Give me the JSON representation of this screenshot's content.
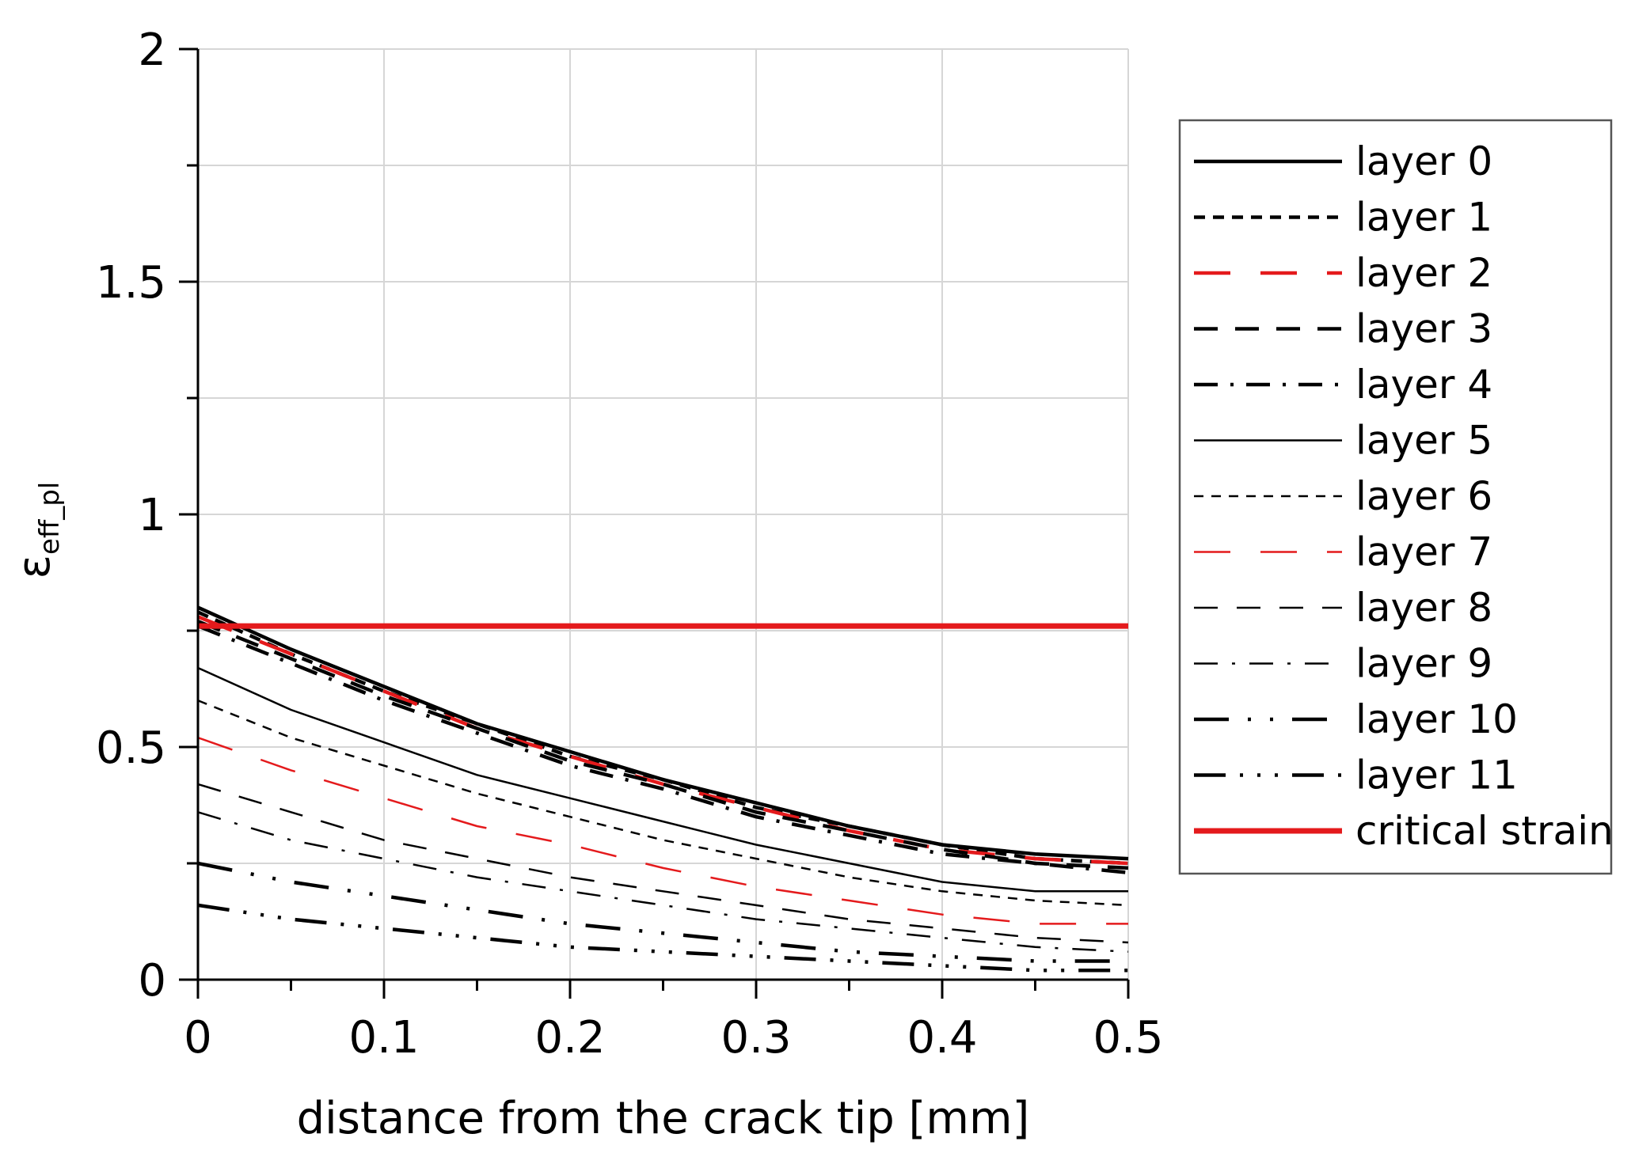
{
  "chart_data": {
    "type": "line",
    "xlabel": "distance from the crack tip [mm]",
    "ylabel_base": "ε",
    "ylabel_sub": "eff_pl",
    "xlim": [
      0,
      0.5
    ],
    "ylim": [
      0,
      2
    ],
    "x_ticks": [
      "0",
      "0.1",
      "0.2",
      "0.3",
      "0.4",
      "0.5"
    ],
    "y_ticks": [
      "0",
      "0.5",
      "1",
      "1.5",
      "2"
    ],
    "grid": true,
    "legend_position": "right",
    "x": [
      0,
      0.05,
      0.1,
      0.15,
      0.2,
      0.25,
      0.3,
      0.35,
      0.4,
      0.45,
      0.5
    ],
    "series": [
      {
        "name": "layer 0",
        "color": "#000000",
        "style": "solid",
        "values": [
          0.8,
          0.71,
          0.63,
          0.55,
          0.49,
          0.43,
          0.38,
          0.33,
          0.29,
          0.27,
          0.26
        ]
      },
      {
        "name": "layer 1",
        "color": "#000000",
        "style": "short-dash",
        "values": [
          0.79,
          0.7,
          0.62,
          0.55,
          0.48,
          0.43,
          0.37,
          0.33,
          0.29,
          0.26,
          0.25
        ]
      },
      {
        "name": "layer 2",
        "color": "#e41a1c",
        "style": "long-dash",
        "values": [
          0.78,
          0.7,
          0.62,
          0.54,
          0.48,
          0.42,
          0.37,
          0.32,
          0.28,
          0.26,
          0.25
        ]
      },
      {
        "name": "layer 3",
        "color": "#000000",
        "style": "dash",
        "values": [
          0.77,
          0.69,
          0.61,
          0.54,
          0.47,
          0.42,
          0.36,
          0.32,
          0.28,
          0.25,
          0.24
        ]
      },
      {
        "name": "layer 4",
        "color": "#000000",
        "style": "dash-dot",
        "values": [
          0.76,
          0.68,
          0.6,
          0.53,
          0.46,
          0.41,
          0.35,
          0.31,
          0.27,
          0.25,
          0.23
        ]
      },
      {
        "name": "layer 5",
        "color": "#000000",
        "style": "solid-thin",
        "values": [
          0.67,
          0.58,
          0.51,
          0.44,
          0.39,
          0.34,
          0.29,
          0.25,
          0.21,
          0.19,
          0.19
        ]
      },
      {
        "name": "layer 6",
        "color": "#000000",
        "style": "short-dash-thin",
        "values": [
          0.6,
          0.52,
          0.46,
          0.4,
          0.35,
          0.3,
          0.26,
          0.22,
          0.19,
          0.17,
          0.16
        ]
      },
      {
        "name": "layer 7",
        "color": "#e41a1c",
        "style": "long-dash-thin",
        "values": [
          0.52,
          0.45,
          0.39,
          0.33,
          0.29,
          0.24,
          0.2,
          0.17,
          0.14,
          0.12,
          0.12
        ]
      },
      {
        "name": "layer 8",
        "color": "#000000",
        "style": "dash-thin",
        "values": [
          0.42,
          0.36,
          0.3,
          0.26,
          0.22,
          0.19,
          0.16,
          0.13,
          0.11,
          0.09,
          0.08
        ]
      },
      {
        "name": "layer 9",
        "color": "#000000",
        "style": "dash-dot-thin",
        "values": [
          0.36,
          0.3,
          0.26,
          0.22,
          0.19,
          0.16,
          0.13,
          0.11,
          0.09,
          0.07,
          0.06
        ]
      },
      {
        "name": "layer 10",
        "color": "#000000",
        "style": "long-dash-dot-dot",
        "values": [
          0.25,
          0.21,
          0.18,
          0.15,
          0.12,
          0.1,
          0.08,
          0.06,
          0.05,
          0.04,
          0.04
        ]
      },
      {
        "name": "layer 11",
        "color": "#000000",
        "style": "long-dash-dot-dot-dot",
        "values": [
          0.16,
          0.13,
          0.11,
          0.09,
          0.07,
          0.06,
          0.05,
          0.04,
          0.03,
          0.02,
          0.02
        ]
      },
      {
        "name": "critical strain",
        "color": "#e41a1c",
        "style": "solid-thick",
        "values": [
          0.76,
          0.76,
          0.76,
          0.76,
          0.76,
          0.76,
          0.76,
          0.76,
          0.76,
          0.76,
          0.76
        ]
      }
    ]
  }
}
